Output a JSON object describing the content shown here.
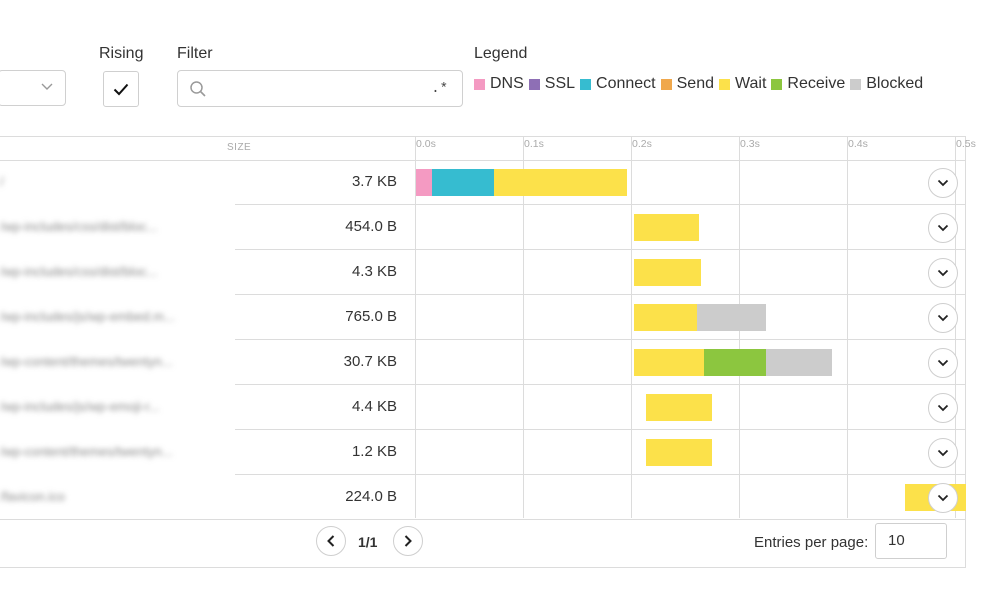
{
  "controls": {
    "rising_label": "Rising",
    "rising_checked": true,
    "filter_label": "Filter",
    "filter_value": "",
    "filter_regex_symbol": ".*",
    "legend_label": "Legend"
  },
  "legend": [
    {
      "label": "DNS",
      "color": "#f49ac2"
    },
    {
      "label": "SSL",
      "color": "#8e6fb5"
    },
    {
      "label": "Connect",
      "color": "#36bcd0"
    },
    {
      "label": "Send",
      "color": "#f0a84c"
    },
    {
      "label": "Wait",
      "color": "#fce14a"
    },
    {
      "label": "Receive",
      "color": "#8cc63f"
    },
    {
      "label": "Blocked",
      "color": "#cccccc"
    }
  ],
  "table": {
    "size_header": "SIZE",
    "ticks": [
      "0.0s",
      "0.1s",
      "0.2s",
      "0.3s",
      "0.4s",
      "0.5s"
    ],
    "rows": [
      {
        "name": "/",
        "size": "3.7 KB",
        "timing": [
          {
            "phase": "DNS",
            "start": 0.0,
            "end": 0.015
          },
          {
            "phase": "Connect",
            "start": 0.015,
            "end": 0.072
          },
          {
            "phase": "Wait",
            "start": 0.072,
            "end": 0.195
          }
        ]
      },
      {
        "name": "/wp-includes/css/dist/bloc...",
        "size": "454.0 B",
        "timing": [
          {
            "phase": "Wait",
            "start": 0.202,
            "end": 0.262
          }
        ]
      },
      {
        "name": "/wp-includes/css/dist/bloc...",
        "size": "4.3 KB",
        "timing": [
          {
            "phase": "Wait",
            "start": 0.202,
            "end": 0.264
          }
        ]
      },
      {
        "name": "/wp-includes/js/wp-embed.m...",
        "size": "765.0 B",
        "timing": [
          {
            "phase": "Wait",
            "start": 0.202,
            "end": 0.26
          },
          {
            "phase": "Blocked",
            "start": 0.26,
            "end": 0.324
          }
        ]
      },
      {
        "name": "/wp-content/themes/twentyn...",
        "size": "30.7 KB",
        "timing": [
          {
            "phase": "Wait",
            "start": 0.202,
            "end": 0.267
          },
          {
            "phase": "Receive",
            "start": 0.267,
            "end": 0.324
          },
          {
            "phase": "Blocked",
            "start": 0.324,
            "end": 0.385
          }
        ]
      },
      {
        "name": "/wp-includes/js/wp-emoji-r...",
        "size": "4.4 KB",
        "timing": [
          {
            "phase": "Wait",
            "start": 0.213,
            "end": 0.274
          }
        ]
      },
      {
        "name": "/wp-content/themes/twentyn...",
        "size": "1.2 KB",
        "timing": [
          {
            "phase": "Wait",
            "start": 0.213,
            "end": 0.274
          }
        ]
      },
      {
        "name": "/favicon.ico",
        "size": "224.0 B",
        "timing": [
          {
            "phase": "Wait",
            "start": 0.453,
            "end": 0.52
          }
        ]
      }
    ]
  },
  "pagination": {
    "info": "1/1",
    "entries_label": "Entries per page:",
    "entries_value": "10"
  }
}
